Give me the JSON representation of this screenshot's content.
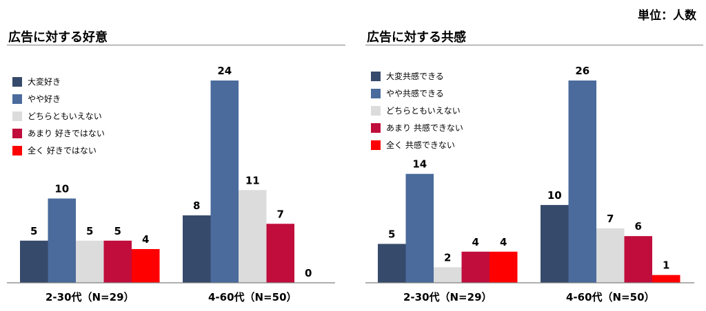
{
  "unit_label": "単位：人数",
  "colors": [
    "#364a6b",
    "#4a6b9c",
    "#dcdcdc",
    "#c00d3b",
    "#ff0000"
  ],
  "chart_data": [
    {
      "type": "bar",
      "title": "広告に対する好意",
      "categories": [
        "2-30代（N=29）",
        "4-60代（N=50）"
      ],
      "ylim": [
        0,
        24
      ],
      "legend_position": "top-left",
      "grid": false,
      "series": [
        {
          "name": "大変好き",
          "values": [
            5,
            8
          ]
        },
        {
          "name": "やや好き",
          "values": [
            10,
            24
          ]
        },
        {
          "name": "どちらともいえない",
          "values": [
            5,
            11
          ]
        },
        {
          "name": "あまり 好きではない",
          "values": [
            5,
            7
          ]
        },
        {
          "name": "全く 好きではない",
          "values": [
            4,
            0
          ]
        }
      ]
    },
    {
      "type": "bar",
      "title": "広告に対する共感",
      "categories": [
        "2-30代（N=29）",
        "4-60代（N=50）"
      ],
      "ylim": [
        0,
        26
      ],
      "legend_position": "top-left",
      "grid": false,
      "series": [
        {
          "name": "大変共感できる",
          "values": [
            5,
            10
          ]
        },
        {
          "name": "やや共感できる",
          "values": [
            14,
            26
          ]
        },
        {
          "name": "どちらともいえない",
          "values": [
            2,
            7
          ]
        },
        {
          "name": "あまり 共感できない",
          "values": [
            4,
            6
          ]
        },
        {
          "name": "全く 共感できない",
          "values": [
            4,
            1
          ]
        }
      ]
    }
  ]
}
